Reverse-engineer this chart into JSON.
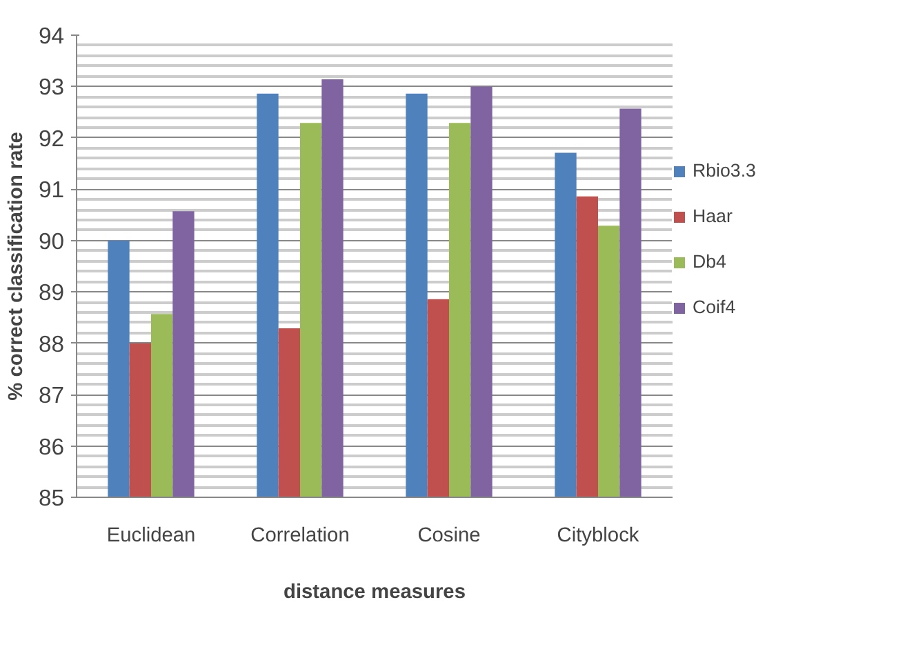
{
  "chart_data": {
    "type": "bar",
    "xlabel": "distance measures",
    "ylabel": "% correct classification rate",
    "categories": [
      "Euclidean",
      "Correlation",
      "Cosine",
      "Cityblock"
    ],
    "series": [
      {
        "name": "Rbio3.3",
        "color": "#4f81bd",
        "values": [
          90.0,
          92.86,
          92.86,
          91.71
        ]
      },
      {
        "name": "Haar",
        "color": "#c0504d",
        "values": [
          88.0,
          88.29,
          88.86,
          90.86
        ]
      },
      {
        "name": "Db4",
        "color": "#9bbb59",
        "values": [
          88.57,
          92.29,
          92.29,
          90.29
        ]
      },
      {
        "name": "Coif4",
        "color": "#8064a2",
        "values": [
          90.57,
          93.14,
          93.0,
          92.57
        ]
      }
    ],
    "ylim": [
      85,
      94
    ],
    "yticks": [
      85,
      {
        "value": 85.2,
        "label": null
      },
      {
        "value": 85.4,
        "label": null
      },
      {
        "value": 85.6,
        "label": null
      },
      {
        "value": 85.8,
        "label": null
      },
      86,
      {
        "value": 86.2,
        "label": null
      },
      {
        "value": 86.4,
        "label": null
      },
      {
        "value": 86.6,
        "label": null
      },
      {
        "value": 86.8,
        "label": null
      },
      87,
      {
        "value": 87.2,
        "label": null
      },
      {
        "value": 87.4,
        "label": null
      },
      {
        "value": 87.6,
        "label": null
      },
      {
        "value": 87.8,
        "label": null
      },
      88,
      {
        "value": 88.2,
        "label": null
      },
      {
        "value": 88.4,
        "label": null
      },
      {
        "value": 88.6,
        "label": null
      },
      {
        "value": 88.8,
        "label": null
      },
      89,
      {
        "value": 89.2,
        "label": null
      },
      {
        "value": 89.4,
        "label": null
      },
      {
        "value": 89.6,
        "label": null
      },
      {
        "value": 89.8,
        "label": null
      },
      90,
      {
        "value": 90.2,
        "label": null
      },
      {
        "value": 90.4,
        "label": null
      },
      {
        "value": 90.6,
        "label": null
      },
      {
        "value": 90.8,
        "label": null
      },
      91,
      {
        "value": 91.2,
        "label": null
      },
      {
        "value": 91.4,
        "label": null
      },
      {
        "value": 91.6,
        "label": null
      },
      {
        "value": 91.8,
        "label": null
      },
      92,
      {
        "value": 92.2,
        "label": null
      },
      {
        "value": 92.4,
        "label": null
      },
      {
        "value": 92.6,
        "label": null
      },
      {
        "value": 92.8,
        "label": null
      },
      93,
      {
        "value": 93.2,
        "label": null
      },
      {
        "value": 93.4,
        "label": null
      },
      {
        "value": 93.6,
        "label": null
      },
      {
        "value": 93.8,
        "label": null
      },
      94
    ],
    "grid": "y",
    "legend": "right"
  }
}
